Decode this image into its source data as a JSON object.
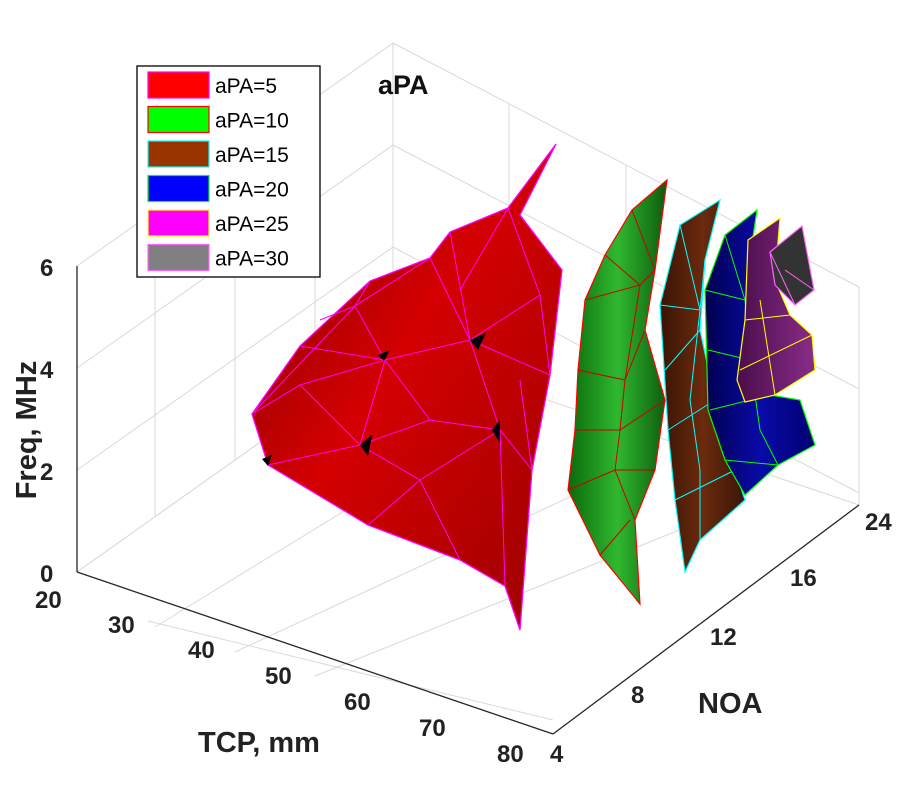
{
  "chart_data": {
    "type": "surface3d",
    "title": "aPA",
    "xlabel": "TCP, mm",
    "ylabel": "NOA",
    "zlabel": "Freq, MHz",
    "xticks": [
      "20",
      "30",
      "40",
      "50",
      "60",
      "70",
      "80"
    ],
    "yticks": [
      "4",
      "8",
      "12",
      "16",
      "24"
    ],
    "zticks": [
      "0",
      "2",
      "4",
      "6"
    ],
    "xlim": [
      20,
      80
    ],
    "ylim": [
      4,
      24
    ],
    "zlim": [
      0,
      6
    ],
    "legend_location": "top-left",
    "series": [
      {
        "name": "aPA=5",
        "fill": "#ff0000",
        "edge": "#ff00ff",
        "noa_range": [
          4,
          8
        ],
        "tcp_range": [
          22,
          60
        ],
        "freq_range": [
          1.2,
          5.8
        ]
      },
      {
        "name": "aPA=10",
        "fill": "#00ff00",
        "edge": "#ff0000",
        "noa_range": [
          10,
          12
        ],
        "tcp_range": [
          40,
          75
        ],
        "freq_range": [
          0.8,
          5.5
        ]
      },
      {
        "name": "aPA=15",
        "fill": "#993300",
        "edge": "#00ffff",
        "noa_range": [
          14,
          16
        ],
        "tcp_range": [
          45,
          75
        ],
        "freq_range": [
          0.8,
          5.5
        ]
      },
      {
        "name": "aPA=20",
        "fill": "#0000ff",
        "edge": "#00ff00",
        "noa_range": [
          16,
          20
        ],
        "tcp_range": [
          50,
          75
        ],
        "freq_range": [
          1.5,
          5.0
        ]
      },
      {
        "name": "aPA=25",
        "fill": "#ff00ff",
        "edge": "#ffff00",
        "noa_range": [
          20,
          22
        ],
        "tcp_range": [
          60,
          75
        ],
        "freq_range": [
          3.0,
          5.0
        ]
      },
      {
        "name": "aPA=30",
        "fill": "#808080",
        "edge": "#ff66ff",
        "noa_range": [
          22,
          24
        ],
        "tcp_range": [
          65,
          75
        ],
        "freq_range": [
          4.0,
          5.0
        ]
      }
    ]
  }
}
